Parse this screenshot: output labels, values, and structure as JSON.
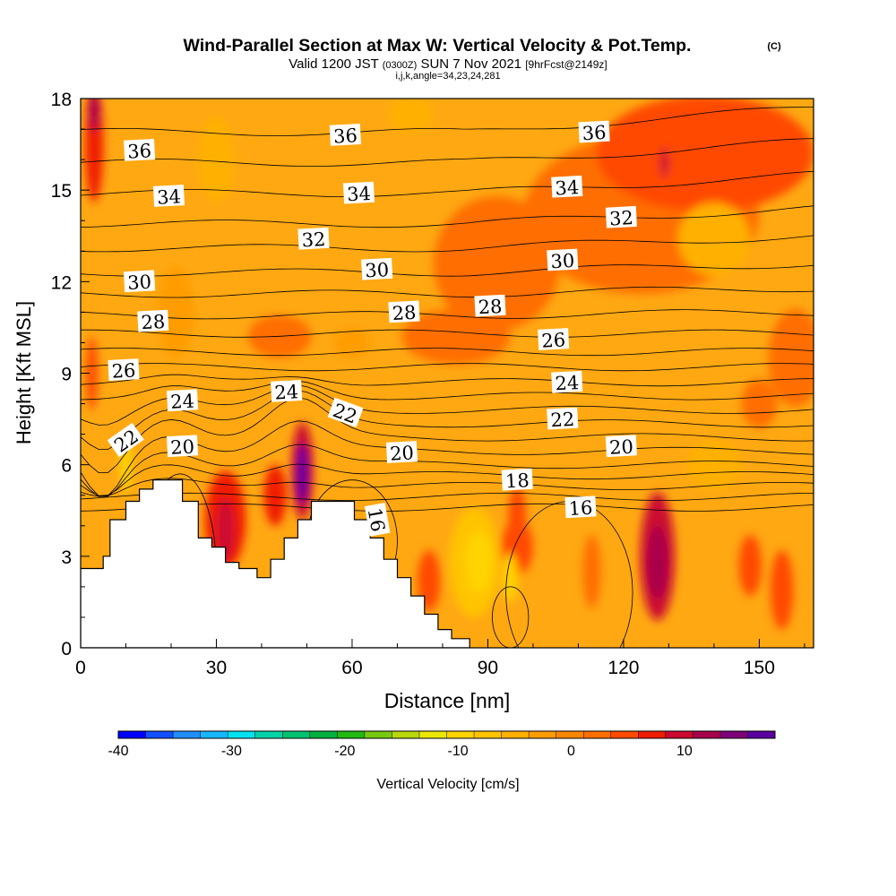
{
  "title": {
    "main": "Wind-Parallel Section at Max W: Vertical Velocity & Pot.Temp.",
    "copyright": "(C)",
    "valid_prefix": "Valid 1200 JST",
    "valid_utc": "(0300Z)",
    "valid_date": "SUN 7 Nov 2021",
    "forecast": "[9hrFcst@2149z]",
    "indices": "i,j,k,angle=34,23,24,281"
  },
  "chart_data": {
    "type": "heatmap",
    "xlabel": "Distance [nm]",
    "ylabel": "Height [Kft MSL]",
    "xlim": [
      0,
      162
    ],
    "ylim": [
      0,
      18
    ],
    "xticks": [
      "0",
      "30",
      "60",
      "90",
      "120",
      "150"
    ],
    "xtick_values": [
      0,
      30,
      60,
      90,
      120,
      150
    ],
    "yticks": [
      "0",
      "3",
      "6",
      "9",
      "12",
      "15",
      "18"
    ],
    "ytick_values": [
      0,
      3,
      6,
      9,
      12,
      15,
      18
    ],
    "colorbar": {
      "label": "Vertical Velocity [cm/s]",
      "min": -40,
      "max": 18,
      "tick_labels": [
        "-40",
        "-30",
        "-20",
        "-10",
        "0",
        "10"
      ],
      "tick_values": [
        -40,
        -30,
        -20,
        -10,
        0,
        10
      ],
      "colors": [
        "#0000ff",
        "#1050ff",
        "#1f8fff",
        "#15b8ff",
        "#00e2f0",
        "#00d2a8",
        "#00c270",
        "#00b040",
        "#20ba10",
        "#78c810",
        "#b8d80c",
        "#eae800",
        "#ffd400",
        "#ffc400",
        "#ffb000",
        "#ff9c00",
        "#ff8600",
        "#ff6e00",
        "#ff4a00",
        "#f01c00",
        "#cc0830",
        "#a8004c",
        "#80007a",
        "#5a00a0"
      ]
    },
    "terrain": [
      [
        0,
        2.6
      ],
      [
        5,
        2.6
      ],
      [
        5,
        3.0
      ],
      [
        6.5,
        3.0
      ],
      [
        6.5,
        4.2
      ],
      [
        10,
        4.2
      ],
      [
        10,
        4.8
      ],
      [
        13,
        4.8
      ],
      [
        13,
        5.2
      ],
      [
        16,
        5.2
      ],
      [
        16,
        5.5
      ],
      [
        22.5,
        5.5
      ],
      [
        22.5,
        4.8
      ],
      [
        26,
        4.8
      ],
      [
        26,
        3.6
      ],
      [
        29,
        3.6
      ],
      [
        29,
        3.3
      ],
      [
        32,
        3.3
      ],
      [
        32,
        2.8
      ],
      [
        35,
        2.8
      ],
      [
        35,
        2.6
      ],
      [
        39,
        2.6
      ],
      [
        39,
        2.3
      ],
      [
        42,
        2.3
      ],
      [
        42,
        2.9
      ],
      [
        45,
        2.9
      ],
      [
        45,
        3.6
      ],
      [
        48,
        3.6
      ],
      [
        48,
        4.2
      ],
      [
        51,
        4.2
      ],
      [
        51,
        4.8
      ],
      [
        60.5,
        4.8
      ],
      [
        60.5,
        4.2
      ],
      [
        64,
        4.2
      ],
      [
        64,
        3.6
      ],
      [
        67,
        3.6
      ],
      [
        67,
        2.9
      ],
      [
        70,
        2.9
      ],
      [
        70,
        2.3
      ],
      [
        73,
        2.3
      ],
      [
        73,
        1.7
      ],
      [
        76,
        1.7
      ],
      [
        76,
        1.1
      ],
      [
        79,
        1.1
      ],
      [
        79,
        0.6
      ],
      [
        82,
        0.6
      ],
      [
        82,
        0.3
      ],
      [
        86,
        0.3
      ],
      [
        86,
        0
      ],
      [
        0,
        0
      ]
    ],
    "theta_levels": [
      16,
      17,
      18,
      19,
      20,
      21,
      22,
      23,
      24,
      25,
      26,
      27,
      28,
      29,
      30,
      31,
      32,
      33,
      34,
      35,
      36,
      37
    ],
    "theta_base_height": [
      4.6,
      4.95,
      5.3,
      5.65,
      6.0,
      6.45,
      6.9,
      7.35,
      7.8,
      8.25,
      8.7,
      9.2,
      9.7,
      10.3,
      10.9,
      11.6,
      12.3,
      13.1,
      13.9,
      14.9,
      15.9,
      16.9
    ],
    "contour_labels": [
      {
        "text": "36",
        "x": 13,
        "y": 16.3
      },
      {
        "text": "36",
        "x": 58.5,
        "y": 16.8
      },
      {
        "text": "36",
        "x": 113.5,
        "y": 16.9
      },
      {
        "text": "34",
        "x": 19.5,
        "y": 14.8
      },
      {
        "text": "34",
        "x": 61.5,
        "y": 14.9
      },
      {
        "text": "34",
        "x": 107.5,
        "y": 15.1
      },
      {
        "text": "32",
        "x": 119.5,
        "y": 14.1
      },
      {
        "text": "32",
        "x": 51.5,
        "y": 13.4
      },
      {
        "text": "30",
        "x": 13,
        "y": 12.0
      },
      {
        "text": "30",
        "x": 65.5,
        "y": 12.4
      },
      {
        "text": "30",
        "x": 106.5,
        "y": 12.7
      },
      {
        "text": "28",
        "x": 16,
        "y": 10.7
      },
      {
        "text": "28",
        "x": 71.5,
        "y": 11.0
      },
      {
        "text": "28",
        "x": 90.5,
        "y": 11.2
      },
      {
        "text": "26",
        "x": 9.5,
        "y": 9.1
      },
      {
        "text": "26",
        "x": 104.5,
        "y": 10.1
      },
      {
        "text": "24",
        "x": 22.5,
        "y": 8.1
      },
      {
        "text": "24",
        "x": 45.5,
        "y": 8.4
      },
      {
        "text": "24",
        "x": 107.5,
        "y": 8.7
      },
      {
        "text": "22",
        "x": 10,
        "y": 6.8,
        "rotate": -35
      },
      {
        "text": "22",
        "x": 58.5,
        "y": 7.7,
        "rotate": 20
      },
      {
        "text": "22",
        "x": 106.5,
        "y": 7.5
      },
      {
        "text": "20",
        "x": 22.5,
        "y": 6.6
      },
      {
        "text": "20",
        "x": 71,
        "y": 6.4
      },
      {
        "text": "20",
        "x": 119.5,
        "y": 6.6
      },
      {
        "text": "18",
        "x": 96.5,
        "y": 5.5
      },
      {
        "text": "16",
        "x": 110.5,
        "y": 4.6
      },
      {
        "text": "16",
        "x": 65.5,
        "y": 4.2,
        "rotate": 80
      }
    ],
    "velocity_blobs": [
      {
        "x": 3,
        "y": 16.5,
        "rx": 2.0,
        "ry": 1.9,
        "value": 8
      },
      {
        "x": 3,
        "y": 17.6,
        "rx": 1.2,
        "ry": 0.7,
        "value": 11
      },
      {
        "x": 2.5,
        "y": 9.0,
        "rx": 1.3,
        "ry": 1.2,
        "value": 4
      },
      {
        "x": 49,
        "y": 5.8,
        "rx": 2.4,
        "ry": 1.6,
        "value": 10
      },
      {
        "x": 49,
        "y": 5.7,
        "rx": 1.3,
        "ry": 1.0,
        "value": 16
      },
      {
        "x": 32,
        "y": 4.2,
        "rx": 4.5,
        "ry": 1.6,
        "value": 7
      },
      {
        "x": 32,
        "y": 3.9,
        "rx": 2.0,
        "ry": 1.0,
        "value": 10
      },
      {
        "x": 43,
        "y": 5.0,
        "rx": 2.5,
        "ry": 1.0,
        "value": 6
      },
      {
        "x": 127.5,
        "y": 3.0,
        "rx": 3.8,
        "ry": 2.1,
        "value": 9
      },
      {
        "x": 127.5,
        "y": 2.8,
        "rx": 2.2,
        "ry": 1.2,
        "value": 13
      },
      {
        "x": 96.5,
        "y": 4.3,
        "rx": 2.0,
        "ry": 1.0,
        "value": 5
      },
      {
        "x": 124,
        "y": 14.2,
        "rx": 26,
        "ry": 2.6,
        "value": 3
      },
      {
        "x": 138,
        "y": 16.2,
        "rx": 24,
        "ry": 1.9,
        "value": 4
      },
      {
        "x": 129,
        "y": 15.9,
        "rx": 1.0,
        "ry": 0.5,
        "value": 9
      },
      {
        "x": 92,
        "y": 12.6,
        "rx": 14,
        "ry": 2.2,
        "value": 3
      },
      {
        "x": 83,
        "y": 10.2,
        "rx": 12,
        "ry": 0.9,
        "value": 3
      },
      {
        "x": 44,
        "y": 10.2,
        "rx": 7,
        "ry": 0.7,
        "value": 3
      },
      {
        "x": 158,
        "y": 9.5,
        "rx": 6,
        "ry": 1.6,
        "value": 3
      },
      {
        "x": 150,
        "y": 8.0,
        "rx": 4,
        "ry": 0.8,
        "value": 3
      },
      {
        "x": 96.5,
        "y": 3.3,
        "rx": 3.5,
        "ry": 0.9,
        "value": 5
      },
      {
        "x": 148,
        "y": 2.7,
        "rx": 2.5,
        "ry": 1.0,
        "value": 5
      },
      {
        "x": 155,
        "y": 1.9,
        "rx": 2.5,
        "ry": 1.3,
        "value": 4
      },
      {
        "x": 113,
        "y": 2.5,
        "rx": 2.0,
        "ry": 1.2,
        "value": 3
      },
      {
        "x": 77,
        "y": 2.2,
        "rx": 2.5,
        "ry": 1.0,
        "value": 5
      },
      {
        "x": 60,
        "y": 10.0,
        "rx": 4,
        "ry": 0.5,
        "value": -2
      },
      {
        "x": 30,
        "y": 16.0,
        "rx": 4,
        "ry": 1.4,
        "value": -5
      },
      {
        "x": 140,
        "y": 13.4,
        "rx": 8,
        "ry": 1.2,
        "value": -6
      },
      {
        "x": 87,
        "y": 2.8,
        "rx": 5.5,
        "ry": 1.8,
        "value": -7
      },
      {
        "x": 88,
        "y": 2.8,
        "rx": 3.0,
        "ry": 1.0,
        "value": -10
      },
      {
        "x": 95,
        "y": 2.3,
        "rx": 1.6,
        "ry": 0.8,
        "value": -9
      },
      {
        "x": 10,
        "y": 6.0,
        "rx": 1.3,
        "ry": 0.9,
        "value": -9
      },
      {
        "x": 140,
        "y": 6.0,
        "rx": 6,
        "ry": 0.8,
        "value": -6
      },
      {
        "x": 73,
        "y": 17.5,
        "rx": 5,
        "ry": 0.6,
        "value": -4
      },
      {
        "x": 21,
        "y": 11.0,
        "rx": 4,
        "ry": 1.5,
        "value": -3
      }
    ]
  }
}
